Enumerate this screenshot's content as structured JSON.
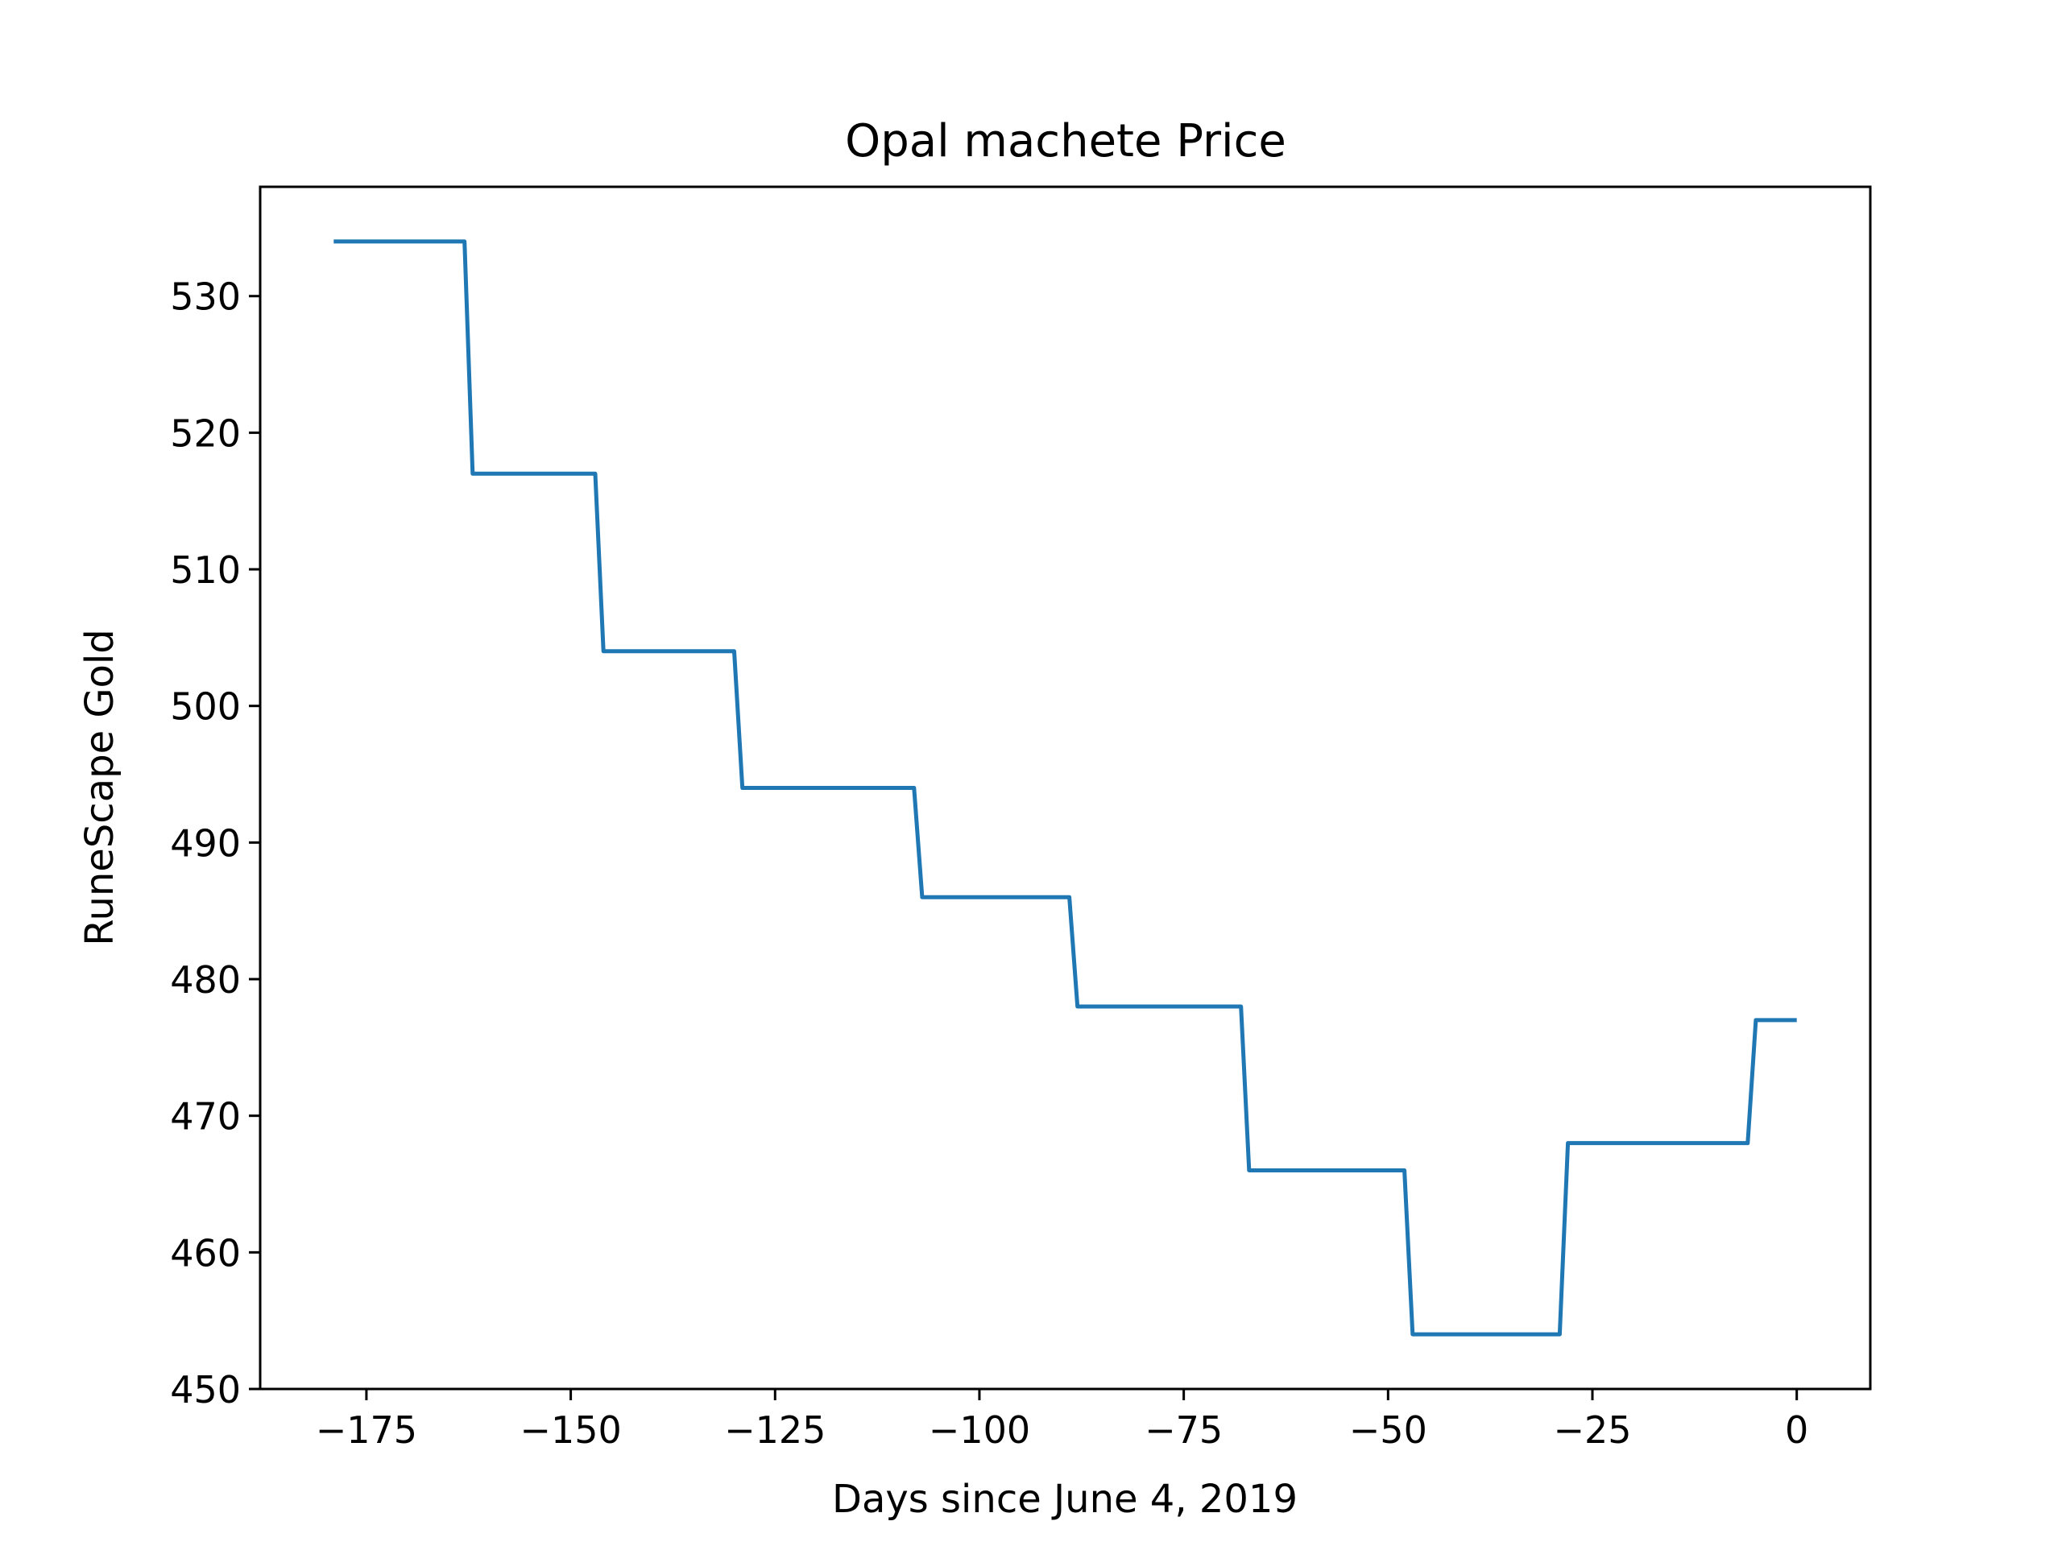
{
  "chart_data": {
    "type": "line",
    "title": "Opal machete Price",
    "xlabel": "Days since June 4, 2019",
    "ylabel": "RuneScape Gold",
    "xlim": [
      -188,
      9
    ],
    "ylim": [
      450,
      538
    ],
    "xticks": [
      -175,
      -150,
      -125,
      -100,
      -75,
      -50,
      -25,
      0
    ],
    "xtick_labels": [
      "−175",
      "−150",
      "−125",
      "−100",
      "−75",
      "−50",
      "−25",
      "0"
    ],
    "yticks": [
      450,
      460,
      470,
      480,
      490,
      500,
      510,
      520,
      530
    ],
    "ytick_labels": [
      "450",
      "460",
      "470",
      "480",
      "490",
      "500",
      "510",
      "520",
      "530"
    ],
    "grid": false,
    "series": [
      {
        "color": "#1f77b4",
        "x": [
          -179,
          -163,
          -162,
          -147,
          -146,
          -130,
          -129,
          -108,
          -107,
          -89,
          -88,
          -68,
          -67,
          -48,
          -47,
          -29,
          -28,
          -6,
          -5,
          0
        ],
        "y": [
          534,
          534,
          517,
          517,
          504,
          504,
          494,
          494,
          486,
          486,
          478,
          478,
          466,
          466,
          454,
          454,
          468,
          468,
          477,
          477
        ]
      }
    ]
  }
}
